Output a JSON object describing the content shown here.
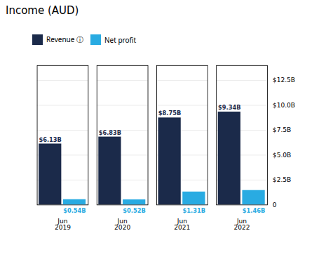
{
  "chart_data": {
    "type": "bar",
    "title": "Income (AUD)",
    "categories": [
      "Jun\n2019",
      "Jun\n2020",
      "Jun\n2021",
      "Jun\n2022"
    ],
    "series": [
      {
        "name": "Revenue ⓘ",
        "color": "#1b2a4a",
        "values": [
          6.13,
          6.83,
          8.75,
          9.34
        ],
        "value_labels": [
          "$6.13B",
          "$6.83B",
          "$8.75B",
          "$9.34B"
        ]
      },
      {
        "name": "Net profit",
        "color": "#29abe2",
        "values": [
          0.54,
          0.52,
          1.31,
          1.46
        ],
        "value_labels": [
          "$0.54B",
          "$0.52B",
          "$1.31B",
          "$1.46B"
        ]
      }
    ],
    "ylim": [
      0,
      14.0
    ],
    "yticks": [
      0,
      {
        "value": 2.5,
        "label": "$2.5B"
      },
      {
        "value": 5.0,
        "label": "$5.0B"
      },
      {
        "value": 7.5,
        "label": "$7.5B"
      },
      {
        "value": 10.0,
        "label": "$10.0B"
      },
      {
        "value": 12.5,
        "label": "$12.5B"
      }
    ],
    "grid": true,
    "legend": "top",
    "data_labels": true
  }
}
